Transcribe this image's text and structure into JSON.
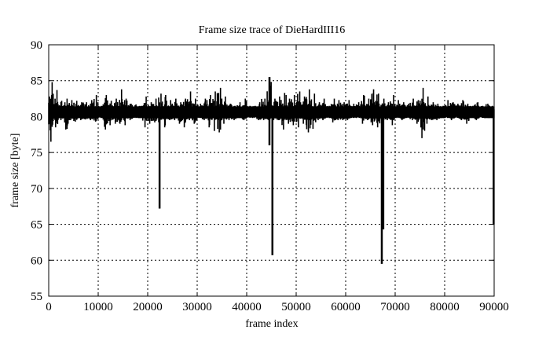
{
  "chart_data": {
    "type": "line",
    "title": "Frame size trace of DieHardIII16",
    "xlabel": "frame index",
    "ylabel": "frame size [byte]",
    "xlim": [
      0,
      90000
    ],
    "ylim": [
      55,
      90
    ],
    "xticks": [
      "0",
      "10000",
      "20000",
      "30000",
      "40000",
      "50000",
      "60000",
      "70000",
      "80000",
      "90000"
    ],
    "yticks": [
      "55",
      "60",
      "65",
      "70",
      "75",
      "80",
      "85",
      "90"
    ],
    "grid": true,
    "line_color": "#000000",
    "baseline": 80.6,
    "envelope": {
      "x": [
        0,
        1000,
        2000,
        3000,
        4000,
        5000,
        6000,
        7000,
        8000,
        9000,
        10000,
        11000,
        12000,
        13000,
        14000,
        15000,
        16000,
        17000,
        18000,
        19000,
        20000,
        21000,
        22000,
        23000,
        24000,
        25000,
        26000,
        27000,
        28000,
        29000,
        30000,
        31000,
        32000,
        33000,
        34000,
        35000,
        36000,
        37000,
        38000,
        39000,
        40000,
        41000,
        42000,
        43000,
        44000,
        45000,
        46000,
        47000,
        48000,
        49000,
        50000,
        51000,
        52000,
        53000,
        54000,
        55000,
        56000,
        57000,
        58000,
        59000,
        60000,
        61000,
        62000,
        63000,
        64000,
        65000,
        66000,
        67000,
        68000,
        69000,
        70000,
        71000,
        72000,
        73000,
        74000,
        75000,
        76000,
        77000,
        78000,
        79000,
        80000,
        81000,
        82000,
        83000,
        84000,
        85000,
        86000,
        87000,
        88000,
        89000
      ],
      "min": [
        76.5,
        78.5,
        79.5,
        78.2,
        79.5,
        79.3,
        79.5,
        79.6,
        79.5,
        79.3,
        80.0,
        78.2,
        78.8,
        79.0,
        79.0,
        78.8,
        79.5,
        80.0,
        79.8,
        78.5,
        79.0,
        79.2,
        79.0,
        78.5,
        79.5,
        79.5,
        79.0,
        78.5,
        79.5,
        79.0,
        80.0,
        79.5,
        78.5,
        78.0,
        77.8,
        79.0,
        79.5,
        79.5,
        79.8,
        79.5,
        80.0,
        80.0,
        79.5,
        79.5,
        79.5,
        79.5,
        79.5,
        78.2,
        79.0,
        78.8,
        78.5,
        79.0,
        77.8,
        78.3,
        79.5,
        79.5,
        80.0,
        79.2,
        79.5,
        79.5,
        79.5,
        80.0,
        80.0,
        79.0,
        79.5,
        78.8,
        78.5,
        79.5,
        79.5,
        78.8,
        80.0,
        79.5,
        80.0,
        79.5,
        79.0,
        77.0,
        79.0,
        79.5,
        79.5,
        79.8,
        80.0,
        79.5,
        80.0,
        79.5,
        79.0,
        79.8,
        79.5,
        80.0,
        79.8,
        79.8
      ],
      "max": [
        84.8,
        83.7,
        82.2,
        82.5,
        82.3,
        82.2,
        82.0,
        82.0,
        82.3,
        83.0,
        81.5,
        83.0,
        82.2,
        82.5,
        83.8,
        82.5,
        81.8,
        81.7,
        81.5,
        82.8,
        82.0,
        82.5,
        83.2,
        83.0,
        82.3,
        82.5,
        82.0,
        82.5,
        83.5,
        82.5,
        81.8,
        82.5,
        83.0,
        83.5,
        84.0,
        82.8,
        81.8,
        81.5,
        82.0,
        82.5,
        81.5,
        81.5,
        82.0,
        82.5,
        85.5,
        82.5,
        82.8,
        83.3,
        82.5,
        83.0,
        83.5,
        82.8,
        83.8,
        83.2,
        82.0,
        82.5,
        81.5,
        82.5,
        82.3,
        82.0,
        82.3,
        81.8,
        82.0,
        83.0,
        82.5,
        83.8,
        83.2,
        82.5,
        82.0,
        83.0,
        82.3,
        82.0,
        81.8,
        82.5,
        82.3,
        84.0,
        82.8,
        82.0,
        81.8,
        81.5,
        82.3,
        82.0,
        81.8,
        82.3,
        81.8,
        81.5,
        82.0,
        81.5,
        81.8,
        81.5
      ]
    },
    "spikes": [
      {
        "x": 22400,
        "min": 67.2,
        "max": 81.0
      },
      {
        "x": 44600,
        "min": 76.0,
        "max": 85.5
      },
      {
        "x": 45200,
        "min": 60.7,
        "max": 81.0
      },
      {
        "x": 67300,
        "min": 59.5,
        "max": 81.0
      },
      {
        "x": 67600,
        "min": 64.3,
        "max": 81.0
      },
      {
        "x": 89900,
        "min": 65.0,
        "max": 81.0
      }
    ]
  }
}
